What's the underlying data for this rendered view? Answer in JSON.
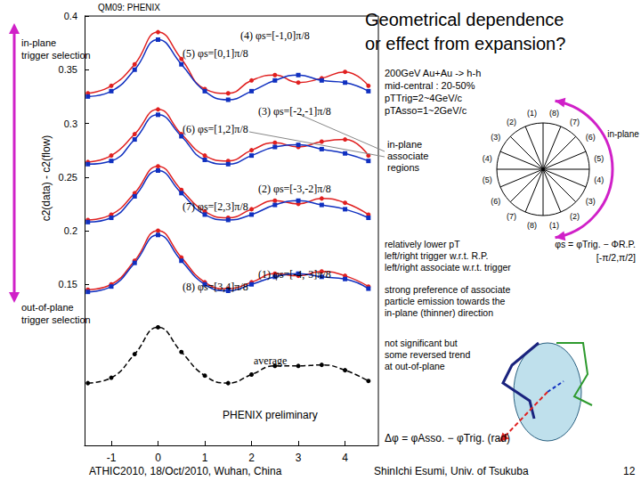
{
  "chart_data": {
    "type": "line",
    "xlabel": "Δφ = φAsso. − φTrig. (rad)",
    "ylabel": "c2(data) - c2(flow)",
    "xlim": [
      -1.5708,
      4.7124
    ],
    "xticks": [
      -1,
      0,
      1,
      2,
      3,
      4
    ],
    "ylim": [
      0,
      0.4
    ],
    "yticks": [
      0.15,
      0.2,
      0.25,
      0.3,
      0.35,
      0.4
    ],
    "grid": false,
    "x": [
      -1.5,
      -1,
      -0.5,
      0,
      0.5,
      1,
      1.5,
      2,
      2.5,
      3,
      3.5,
      4,
      4.5
    ],
    "series": [
      {
        "name": "(4) φs=[-1,0]π/8",
        "color": "#e02020",
        "marker": "circle",
        "line_style": "solid",
        "values": [
          0.328,
          0.335,
          0.355,
          0.385,
          0.36,
          0.332,
          0.328,
          0.34,
          0.345,
          0.338,
          0.342,
          0.348,
          0.335
        ]
      },
      {
        "name": "(5) φs=[0,1]π/8",
        "color": "#1030c0",
        "marker": "square",
        "line_style": "solid",
        "values": [
          0.325,
          0.33,
          0.35,
          0.378,
          0.355,
          0.33,
          0.322,
          0.33,
          0.34,
          0.345,
          0.34,
          0.338,
          0.33
        ]
      },
      {
        "name": "(3) φs=[-2,-1]π/8",
        "color": "#e02020",
        "marker": "circle",
        "line_style": "solid",
        "values": [
          0.264,
          0.27,
          0.29,
          0.313,
          0.29,
          0.27,
          0.265,
          0.275,
          0.282,
          0.278,
          0.283,
          0.285,
          0.27
        ]
      },
      {
        "name": "(6) φs=[1,2]π/8",
        "color": "#1030c0",
        "marker": "square",
        "line_style": "solid",
        "values": [
          0.262,
          0.265,
          0.285,
          0.308,
          0.288,
          0.266,
          0.262,
          0.27,
          0.278,
          0.28,
          0.276,
          0.272,
          0.265
        ]
      },
      {
        "name": "(2) φs=[-3,-2]π/8",
        "color": "#e02020",
        "marker": "circle",
        "line_style": "solid",
        "values": [
          0.21,
          0.215,
          0.235,
          0.26,
          0.238,
          0.218,
          0.212,
          0.22,
          0.228,
          0.225,
          0.23,
          0.226,
          0.215
        ]
      },
      {
        "name": "(7) φs=[2,3]π/8",
        "color": "#1030c0",
        "marker": "square",
        "line_style": "solid",
        "values": [
          0.208,
          0.212,
          0.232,
          0.256,
          0.235,
          0.215,
          0.21,
          0.215,
          0.224,
          0.228,
          0.224,
          0.22,
          0.212
        ]
      },
      {
        "name": "(1) φs=[-4,-3]π/8",
        "color": "#e02020",
        "marker": "circle",
        "line_style": "solid",
        "values": [
          0.145,
          0.15,
          0.172,
          0.2,
          0.175,
          0.152,
          0.146,
          0.152,
          0.16,
          0.158,
          0.162,
          0.158,
          0.148
        ]
      },
      {
        "name": "(8) φs=[3,4]π/8",
        "color": "#1030c0",
        "marker": "square",
        "line_style": "solid",
        "values": [
          0.143,
          0.148,
          0.17,
          0.196,
          0.172,
          0.15,
          0.144,
          0.15,
          0.157,
          0.16,
          0.157,
          0.155,
          0.146
        ]
      },
      {
        "name": "average",
        "color": "#000000",
        "marker": "circle",
        "line_style": "dashed",
        "values": [
          0.058,
          0.063,
          0.085,
          0.11,
          0.087,
          0.065,
          0.058,
          0.066,
          0.074,
          0.074,
          0.075,
          0.07,
          0.06
        ]
      }
    ]
  },
  "slide": {
    "title": [
      "Geometrical dependence",
      "or effect from expansion?"
    ],
    "header": "QM09: PHENIX",
    "in_plane_trigger": [
      "in-plane",
      "trigger selection"
    ],
    "out_of_plane_trigger": [
      "out-of-plane",
      "trigger selection"
    ],
    "watermark": "PHENIX preliminary",
    "conditions": [
      "200GeV Au+Au -> h-h",
      "mid-central : 20-50%",
      "pTTrig=2~4GeV/c",
      "pTAsso=1~2GeV/c"
    ],
    "associate_regions": [
      "in-plane",
      "associate",
      "regions"
    ],
    "note_lower_pt": [
      "relatively lower pT",
      "left/right trigger w.r.t. R.P.",
      "left/right associate w.r.t. trigger"
    ],
    "note_strong": [
      "strong preference of associate",
      "particle emission towards the",
      "in-plane (thinner) direction"
    ],
    "note_reversed": [
      "not significant but",
      "some reversed trend",
      "at out-of-plane"
    ],
    "phi_s": [
      "φs = φTrig. − ΦR.P.",
      "[-π/2,π/2]"
    ],
    "diagram_in_plane": "in-plane",
    "region_labels": [
      "(8)",
      "(7)",
      "(6)",
      "(5)",
      "(4)",
      "(3)",
      "(2)",
      "(1)",
      "(8)",
      "(7)",
      "(6)",
      "(5)",
      "(4)",
      "(3)",
      "(2)",
      "(1)"
    ],
    "footer_left": "ATHIC2010, 18/Oct/2010, Wuhan, China",
    "footer_author": "ShinIchi Esumi, Univ. of Tsukuba",
    "page": "12"
  }
}
